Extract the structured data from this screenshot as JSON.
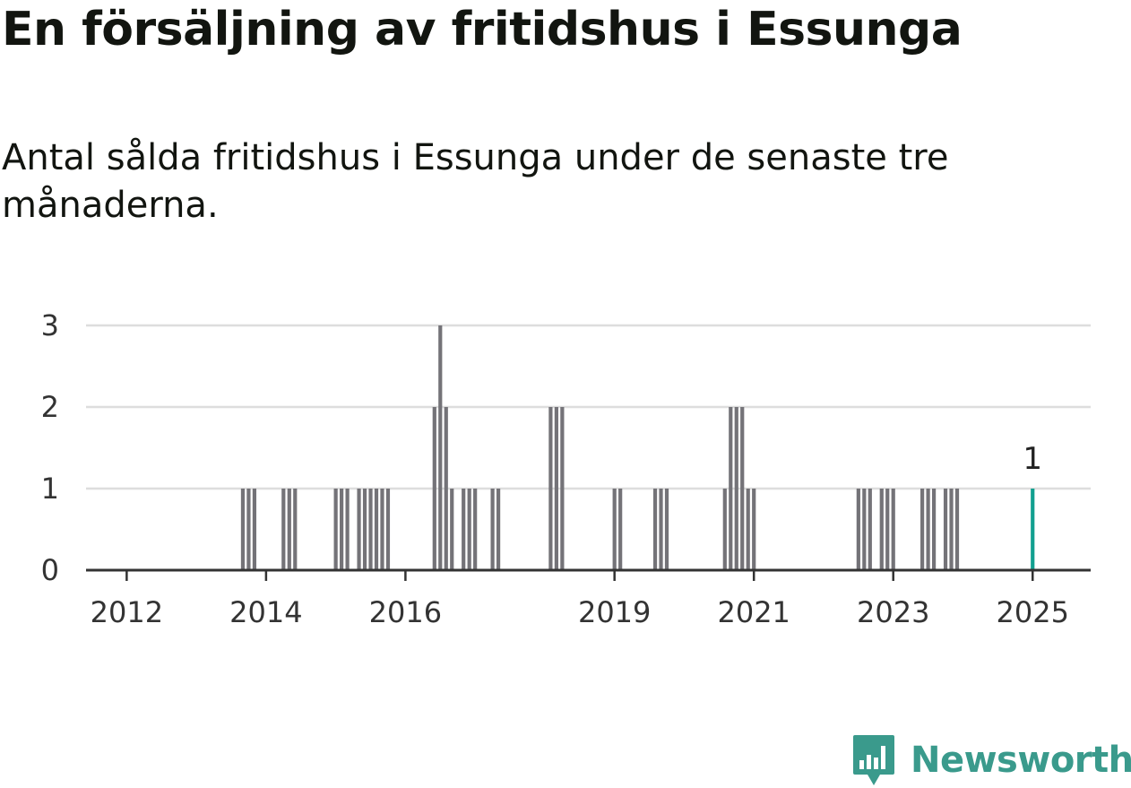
{
  "title": "En försäljning av fritidshus i Essunga",
  "subtitle": "Antal sålda fritidshus i Essunga under de senaste tre månaderna.",
  "brand": {
    "name": "Newsworthy",
    "color": "#3a9a8c",
    "icon": "newsworthy-logo-icon"
  },
  "colors": {
    "bar": "#747378",
    "highlight": "#12a090",
    "grid": "#dddddd",
    "axis": "#333333"
  },
  "chart_data": {
    "type": "bar",
    "title": "En försäljning av fritidshus i Essunga",
    "subtitle": "Antal sålda fritidshus i Essunga under de senaste tre månaderna.",
    "xlabel": "",
    "ylabel": "",
    "ylim": [
      0,
      3
    ],
    "yticks": [
      "0",
      "1",
      "2",
      "3"
    ],
    "xlim": [
      "2011-06",
      "2025-04"
    ],
    "xticks": [
      {
        "date": "2012-01",
        "label": "2012"
      },
      {
        "date": "2014-01",
        "label": "2014"
      },
      {
        "date": "2016-01",
        "label": "2016"
      },
      {
        "date": "2019-01",
        "label": "2019"
      },
      {
        "date": "2021-01",
        "label": "2021"
      },
      {
        "date": "2023-01",
        "label": "2023"
      },
      {
        "date": "2025-01",
        "label": "2025"
      }
    ],
    "grid": true,
    "legend": "none",
    "series": [
      {
        "x": [
          "2013-09",
          "2013-10",
          "2013-11",
          "2014-04",
          "2014-05",
          "2014-06",
          "2015-01",
          "2015-02",
          "2015-03",
          "2015-05",
          "2015-06",
          "2015-07",
          "2015-08",
          "2015-09",
          "2015-10",
          "2016-06",
          "2016-07",
          "2016-08",
          "2016-09",
          "2016-11",
          "2016-12",
          "2017-01",
          "2017-04",
          "2017-05",
          "2018-02",
          "2018-03",
          "2018-04",
          "2019-01",
          "2019-02",
          "2019-08",
          "2019-09",
          "2019-10",
          "2020-08",
          "2020-09",
          "2020-10",
          "2020-11",
          "2020-12",
          "2021-01",
          "2022-07",
          "2022-08",
          "2022-09",
          "2022-11",
          "2022-12",
          "2023-01",
          "2023-06",
          "2023-07",
          "2023-08",
          "2023-10",
          "2023-11",
          "2023-12",
          "2025-01"
        ],
        "values": [
          1,
          1,
          1,
          1,
          1,
          1,
          1,
          1,
          1,
          1,
          1,
          1,
          1,
          1,
          1,
          2,
          3,
          2,
          1,
          1,
          1,
          1,
          1,
          1,
          2,
          2,
          2,
          1,
          1,
          1,
          1,
          1,
          1,
          2,
          2,
          2,
          1,
          1,
          1,
          1,
          1,
          1,
          1,
          1,
          1,
          1,
          1,
          1,
          1,
          1,
          1
        ]
      }
    ],
    "highlight": {
      "x": "2025-01",
      "value": 1,
      "label": "1"
    }
  }
}
